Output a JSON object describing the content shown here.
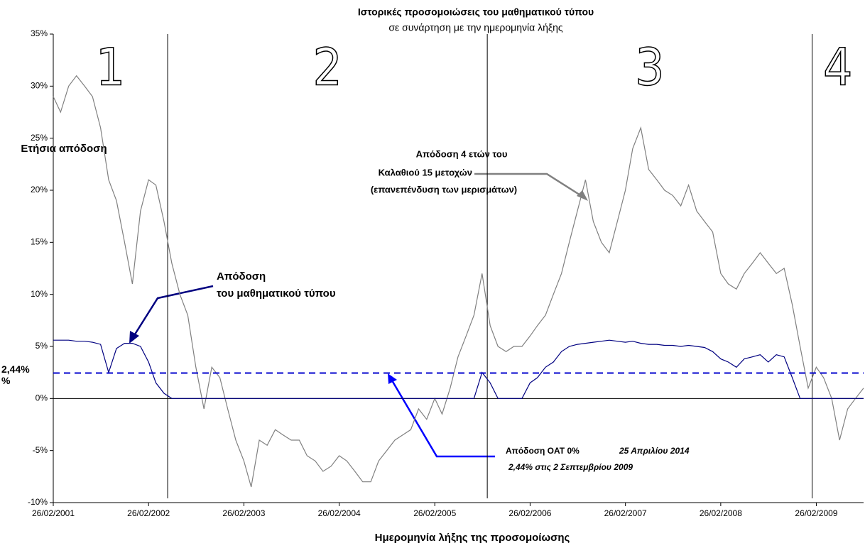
{
  "chart_data": {
    "type": "line",
    "title": "Ιστορικές προσομοιώσεις του μαθηματικού τύπου",
    "subtitle": "σε συνάρτηση με την ημερομηνία λήξης",
    "y_label": "Ετήσια απόδοση",
    "x_label": "Ημερομηνία λήξης της προσομοίωσης",
    "x": [
      "26/02/2001",
      "26/03/2001",
      "26/04/2001",
      "26/05/2001",
      "26/06/2001",
      "26/07/2001",
      "26/08/2001",
      "26/09/2001",
      "26/10/2001",
      "26/11/2001",
      "26/12/2001",
      "26/01/2002",
      "26/02/2002",
      "26/03/2002",
      "26/04/2002",
      "26/05/2002",
      "26/06/2002",
      "26/07/2002",
      "26/08/2002",
      "26/09/2002",
      "26/10/2002",
      "26/11/2002",
      "26/12/2002",
      "26/01/2003",
      "26/02/2003",
      "26/03/2003",
      "26/04/2003",
      "26/05/2003",
      "26/06/2003",
      "26/07/2003",
      "26/08/2003",
      "26/09/2003",
      "26/10/2003",
      "26/11/2003",
      "26/12/2003",
      "26/01/2004",
      "26/02/2004",
      "26/03/2004",
      "26/04/2004",
      "26/05/2004",
      "26/06/2004",
      "26/07/2004",
      "26/08/2004",
      "26/09/2004",
      "26/10/2004",
      "26/11/2004",
      "26/12/2004",
      "26/01/2005",
      "26/02/2005",
      "26/03/2005",
      "26/04/2005",
      "26/05/2005",
      "26/06/2005",
      "26/07/2005",
      "26/08/2005",
      "26/09/2005",
      "26/10/2005",
      "26/11/2005",
      "26/12/2005",
      "26/01/2006",
      "26/02/2006",
      "26/03/2006",
      "26/04/2006",
      "26/05/2006",
      "26/06/2006",
      "26/07/2006",
      "26/08/2006",
      "26/09/2006",
      "26/10/2006",
      "26/11/2006",
      "26/12/2006",
      "26/01/2007",
      "26/02/2007",
      "26/03/2007",
      "26/04/2007",
      "26/05/2007",
      "26/06/2007",
      "26/07/2007",
      "26/08/2007",
      "26/09/2007",
      "26/10/2007",
      "26/11/2007",
      "26/12/2007",
      "26/01/2008",
      "26/02/2008",
      "26/03/2008",
      "26/04/2008",
      "26/05/2008",
      "26/06/2008",
      "26/07/2008",
      "26/08/2008",
      "26/09/2008",
      "26/10/2008",
      "26/11/2008",
      "26/12/2008",
      "26/01/2009",
      "26/02/2009",
      "26/03/2009",
      "26/04/2009",
      "26/05/2009",
      "26/06/2009",
      "26/07/2009",
      "26/08/2009"
    ],
    "series": [
      {
        "color": "#808080",
        "values": [
          29,
          27.5,
          30,
          31,
          30,
          29,
          26,
          21,
          19,
          15,
          11,
          18,
          21,
          20.5,
          17,
          13,
          10,
          8,
          3,
          -1,
          3,
          2,
          -1,
          -4,
          -6,
          -8.5,
          -4,
          -4.5,
          -3,
          -3.5,
          -4,
          -4,
          -5.5,
          -6,
          -7,
          -6.5,
          -5.5,
          -6,
          -7,
          -8,
          -8,
          -6,
          -5,
          -4,
          -3.5,
          -3,
          -1,
          -2,
          0,
          -1.5,
          1,
          4,
          6,
          8,
          12,
          7,
          5,
          4.5,
          5,
          5,
          6,
          7,
          8,
          10,
          12,
          15,
          18,
          21,
          17,
          15,
          14,
          17,
          20,
          24,
          26,
          22,
          21,
          20,
          19.5,
          18.5,
          20.5,
          18,
          17,
          16,
          12,
          11,
          10.5,
          12,
          13,
          14,
          13,
          12,
          12.5,
          9,
          5,
          1,
          3,
          2,
          0,
          -4,
          -1,
          0,
          1
        ]
      },
      {
        "color": "#000080",
        "values": [
          5.6,
          5.6,
          5.6,
          5.5,
          5.5,
          5.4,
          5.2,
          2.5,
          4.8,
          5.3,
          5.3,
          5.0,
          3.5,
          1.5,
          0.5,
          0,
          0,
          0,
          0,
          0,
          0,
          0,
          0,
          0,
          0,
          0,
          0,
          0,
          0,
          0,
          0,
          0,
          0,
          0,
          0,
          0,
          0,
          0,
          0,
          0,
          0,
          0,
          0,
          0,
          0,
          0,
          0,
          0,
          0,
          0,
          0,
          0,
          0,
          0,
          2.5,
          1.5,
          0,
          0,
          0,
          0,
          1.5,
          2,
          3,
          3.5,
          4.5,
          5,
          5.2,
          5.3,
          5.4,
          5.5,
          5.6,
          5.5,
          5.4,
          5.5,
          5.3,
          5.2,
          5.2,
          5.1,
          5.1,
          5.0,
          5.1,
          5.0,
          4.9,
          4.5,
          3.8,
          3.5,
          3,
          3.8,
          4,
          4.2,
          3.5,
          4.2,
          4,
          2,
          0,
          0,
          0,
          0,
          0,
          0,
          0,
          0,
          0
        ]
      }
    ],
    "xlim": [
      "26/02/2001",
      "26/08/2009"
    ],
    "xticks": [
      "26/02/2001",
      "26/02/2002",
      "26/02/2003",
      "26/02/2004",
      "26/02/2005",
      "26/02/2006",
      "26/02/2007",
      "26/02/2008",
      "26/02/2009"
    ],
    "ylim": [
      -10,
      35
    ],
    "yticks": [
      {
        "value": -10,
        "label": "-10%"
      },
      {
        "value": -5,
        "label": "-5%"
      },
      {
        "value": 0,
        "label": "0%"
      },
      {
        "value": 5,
        "label": "5%"
      },
      {
        "value": 10,
        "label": "10%"
      },
      {
        "value": 15,
        "label": "15%"
      },
      {
        "value": 20,
        "label": "20%"
      },
      {
        "value": 25,
        "label": "25%"
      },
      {
        "value": 30,
        "label": "30%"
      },
      {
        "value": 35,
        "label": "35%"
      }
    ],
    "reference_line": {
      "value": 2.44,
      "label": [
        "2,44%",
        "%"
      ],
      "color": "#0000cc"
    },
    "dividers": [
      "10/05/2002",
      "15/09/2005",
      "10/02/2009"
    ],
    "periods": [
      "1",
      "2",
      "3",
      "4"
    ],
    "annotations": {
      "basket": [
        "Απόδοση 4 ετών του",
        "Καλαθιού 15 μετοχών",
        "(επανεπένδυση των μερισμάτων)"
      ],
      "formula": [
        "Απόδοση",
        "του μαθηματικού τύπου"
      ],
      "oat": [
        "Απόδοση OAT 0%",
        "25 Απριλίου 2014",
        "2,44% στις 2 Σεπτεμβρίου 2009"
      ]
    }
  }
}
